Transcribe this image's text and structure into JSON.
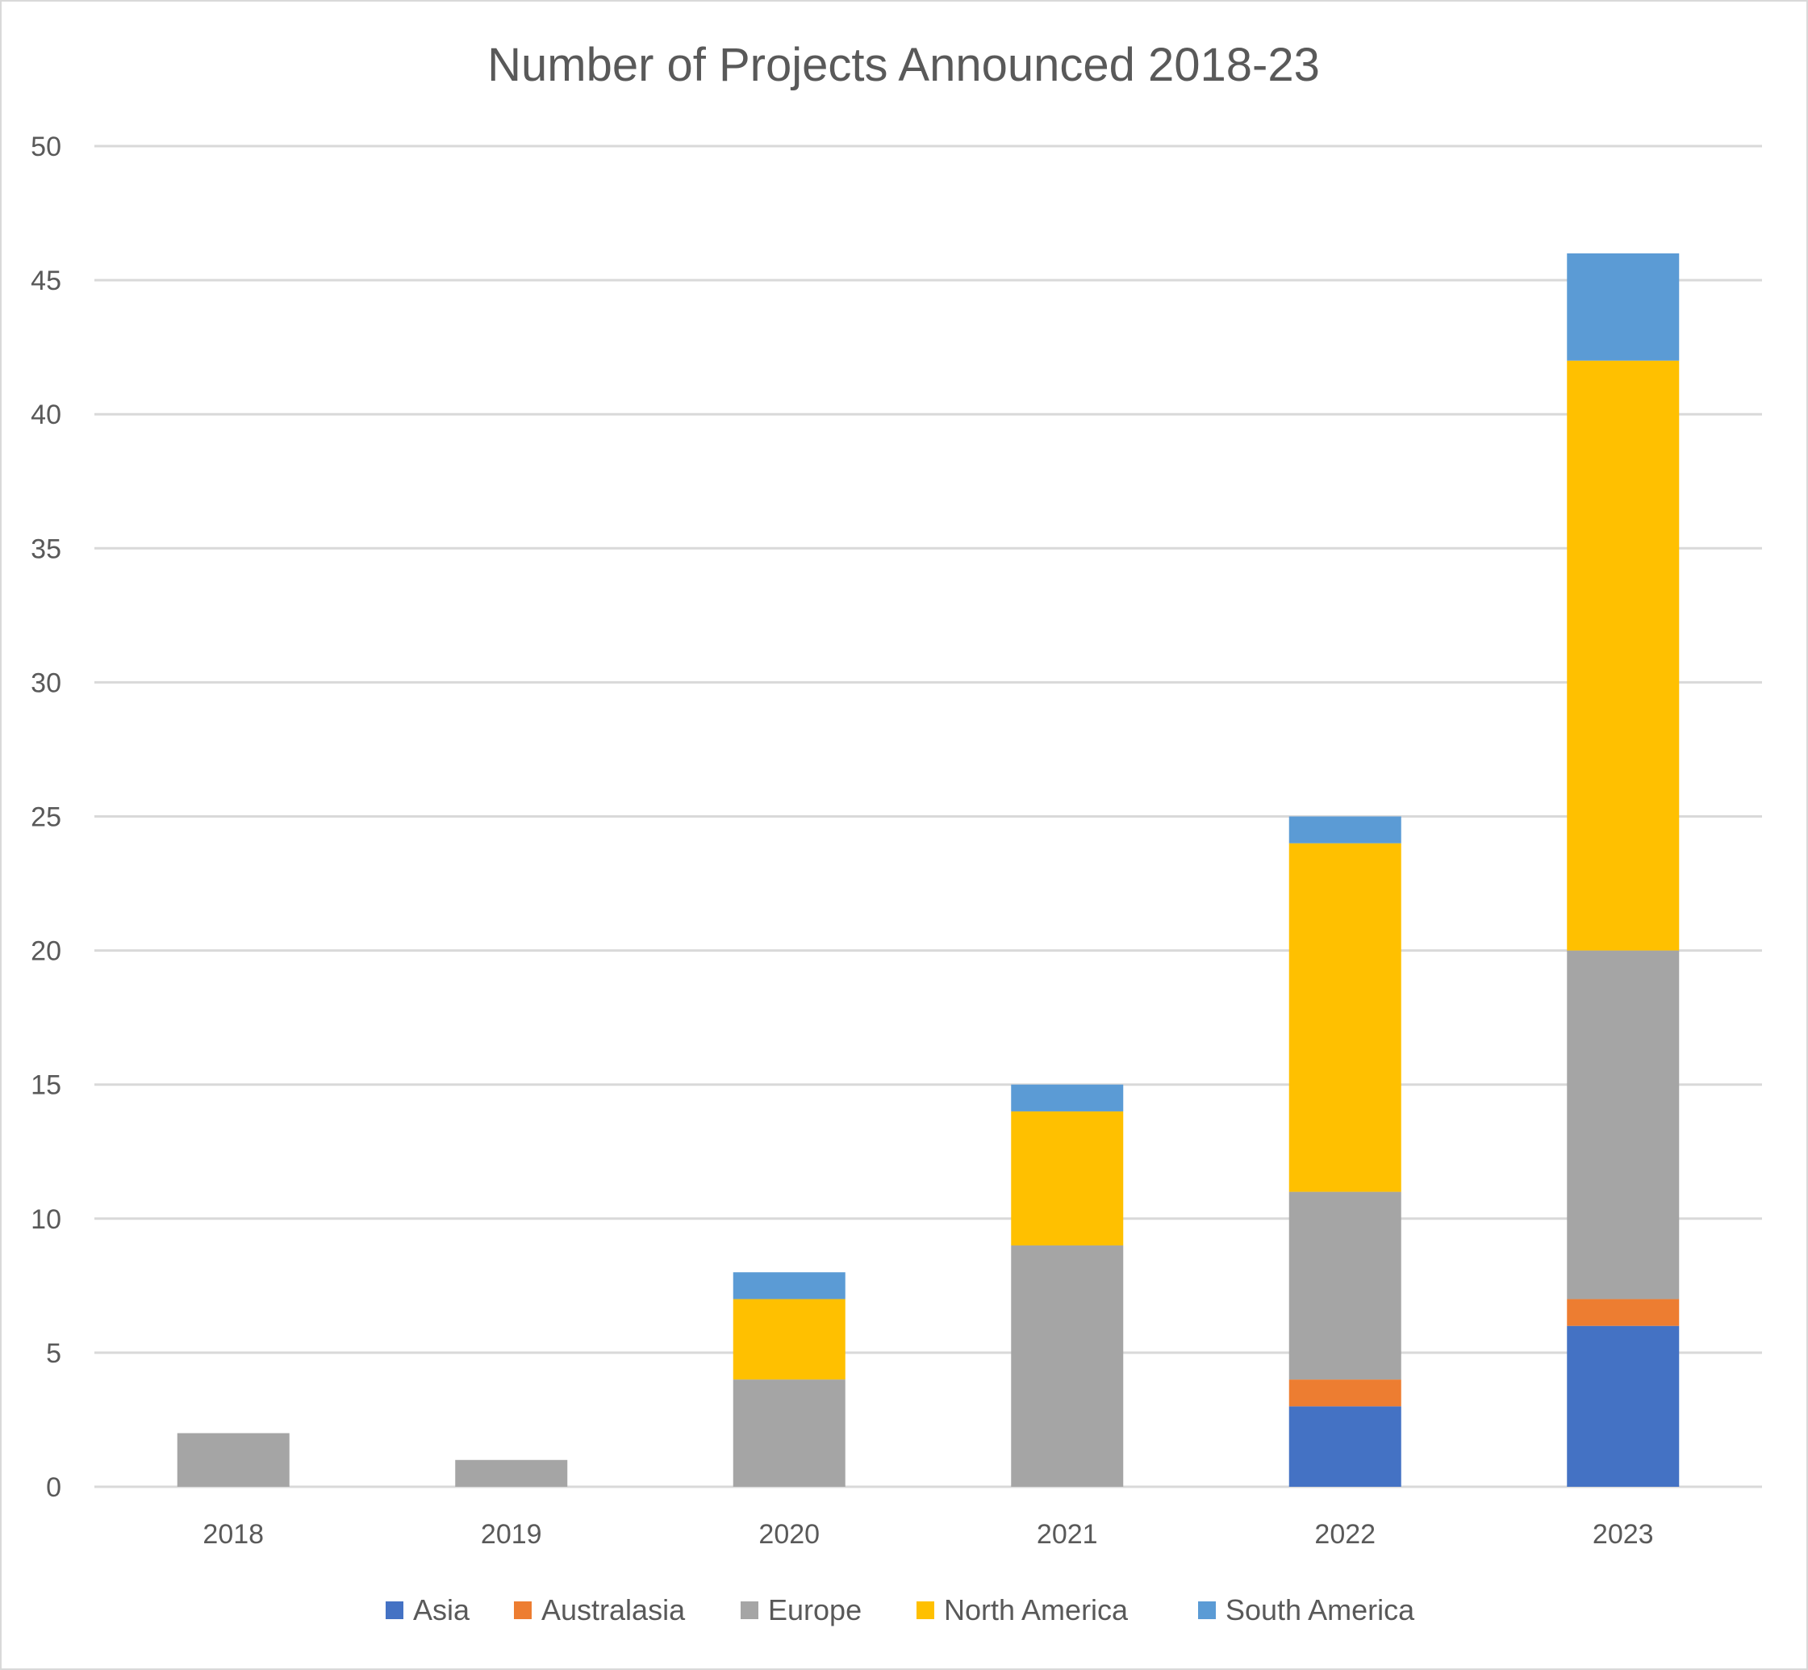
{
  "chart_data": {
    "type": "bar",
    "stacked": true,
    "title": "Number of Projects Announced 2018-23",
    "xlabel": "",
    "ylabel": "",
    "ylim": [
      0,
      50
    ],
    "yticks": [
      0,
      5,
      10,
      15,
      20,
      25,
      30,
      35,
      40,
      45,
      50
    ],
    "grid": true,
    "legend_position": "bottom",
    "categories": [
      "2018",
      "2019",
      "2020",
      "2021",
      "2022",
      "2023"
    ],
    "series": [
      {
        "name": "Asia",
        "color": "#4472C4",
        "values": [
          0,
          0,
          0,
          0,
          3,
          6
        ]
      },
      {
        "name": "Australasia",
        "color": "#ED7D31",
        "values": [
          0,
          0,
          0,
          0,
          1,
          1
        ]
      },
      {
        "name": "Europe",
        "color": "#A5A5A5",
        "values": [
          2,
          1,
          4,
          9,
          7,
          13
        ]
      },
      {
        "name": "North America",
        "color": "#FFC000",
        "values": [
          0,
          0,
          3,
          5,
          13,
          22
        ]
      },
      {
        "name": "South America",
        "color": "#5B9BD5",
        "values": [
          0,
          0,
          1,
          1,
          1,
          4
        ]
      }
    ]
  }
}
